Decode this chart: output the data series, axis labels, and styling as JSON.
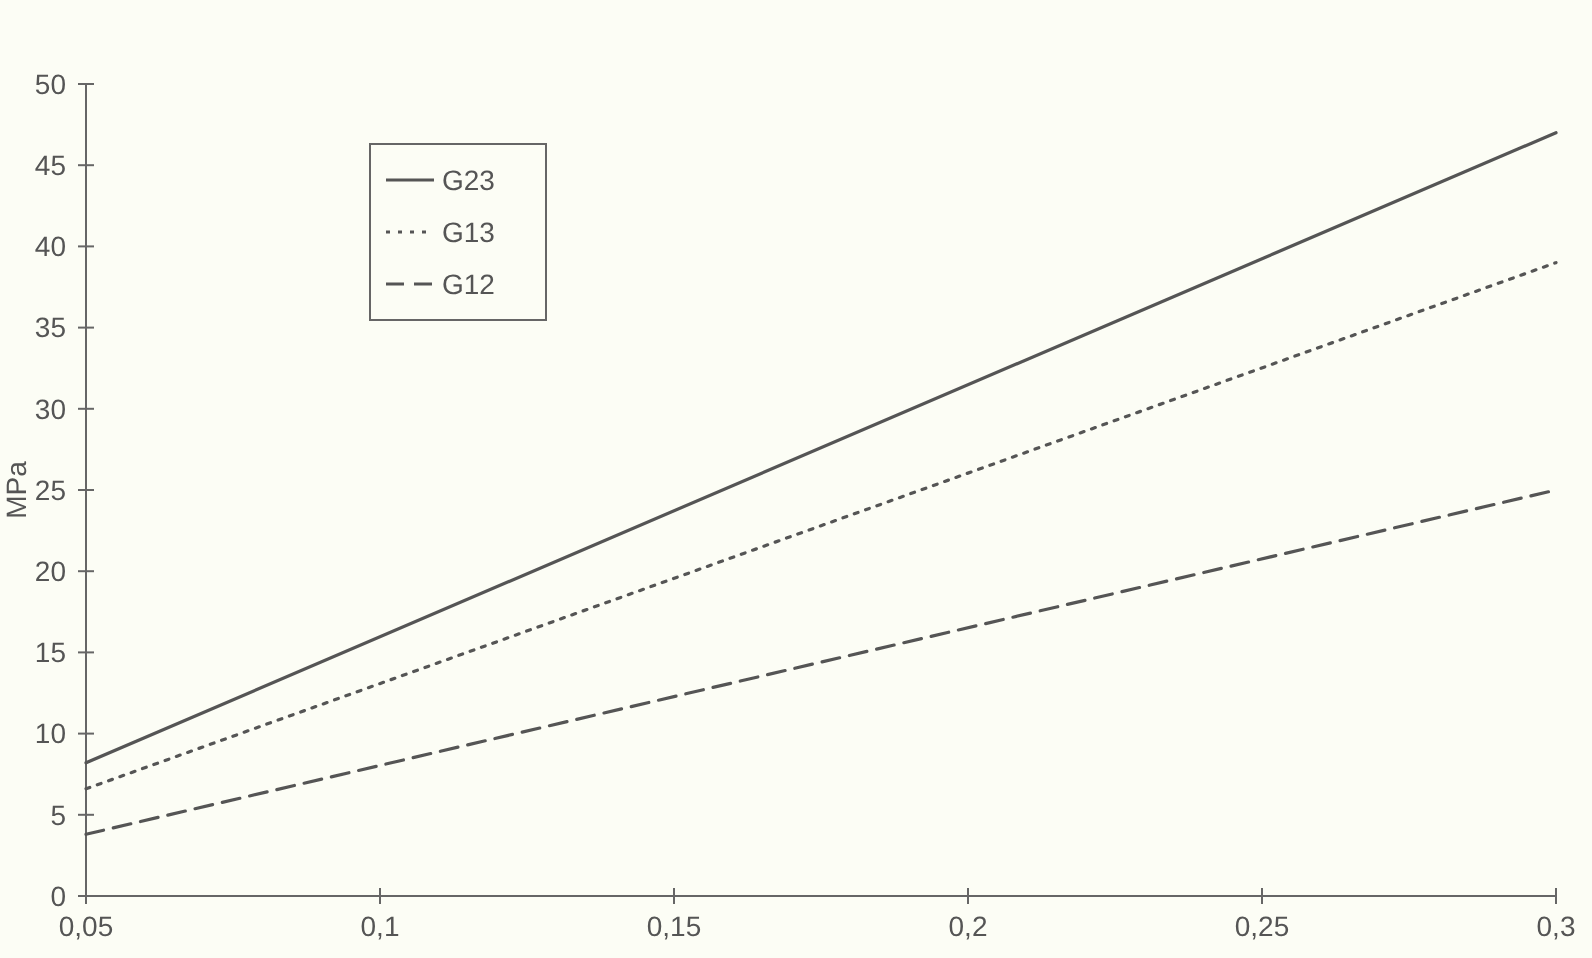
{
  "chart_data": {
    "type": "line",
    "ylabel": "MPa",
    "xlim": [
      0.05,
      0.3
    ],
    "xticks": [
      {
        "value": 0.05,
        "label": "0,05"
      },
      {
        "value": 0.1,
        "label": "0,1"
      },
      {
        "value": 0.15,
        "label": "0,15"
      },
      {
        "value": 0.2,
        "label": "0,2"
      },
      {
        "value": 0.25,
        "label": "0,25"
      },
      {
        "value": 0.3,
        "label": "0,3"
      }
    ],
    "ylim": [
      0,
      50
    ],
    "yticks": [
      0,
      5,
      10,
      15,
      20,
      25,
      30,
      35,
      40,
      45,
      50
    ],
    "grid": false,
    "legend": "top left",
    "marker": "none",
    "x": [
      0.05,
      0.3
    ],
    "series": [
      {
        "name": "G23",
        "color": "#555555",
        "line_style": "solid",
        "values": [
          8.2,
          47
        ]
      },
      {
        "name": "G13",
        "color": "#555555",
        "line_style": "dotted",
        "values": [
          6.6,
          39
        ]
      },
      {
        "name": "G12",
        "color": "#555555",
        "line_style": "dashed",
        "values": [
          3.8,
          25
        ]
      }
    ]
  }
}
